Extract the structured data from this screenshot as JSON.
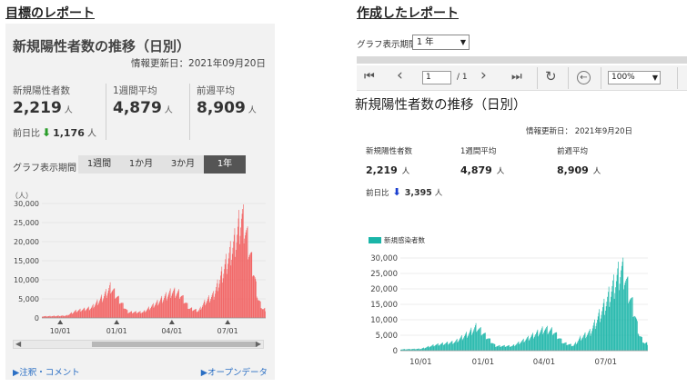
{
  "titles": {
    "left": "目標のレポート",
    "right": "作成したレポート"
  },
  "left": {
    "heading": "新規陽性者数の推移（日別）",
    "updated": "情報更新日：2021年09月20日",
    "stats": [
      {
        "label": "新規陽性者数",
        "value": "2,219",
        "unit": "人"
      },
      {
        "label": "1週間平均",
        "value": "4,879",
        "unit": "人"
      },
      {
        "label": "前週平均",
        "value": "8,909",
        "unit": "人"
      }
    ],
    "diff": {
      "label": "前日比",
      "arrow": "⬇",
      "value": "1,176",
      "unit": "人"
    },
    "period_label": "グラフ表示期間",
    "period_options": [
      "1週間",
      "1か月",
      "3か月",
      "1年"
    ],
    "period_active": "1年",
    "links": {
      "notes": "▶注釈・コメント",
      "opendata": "▶オープンデータ"
    }
  },
  "right": {
    "period_label": "グラフ表示期間",
    "period_selected": "1 年",
    "toolbar": {
      "first_icon": "⏮",
      "prev_icon": "‹",
      "page_value": "1",
      "page_total": "/ 1",
      "next_icon": "›",
      "last_icon": "⏭",
      "refresh_icon": "↻",
      "back_icon": "←",
      "zoom": "100%"
    },
    "heading": "新規陽性者数の推移（日別）",
    "updated": "情報更新日： 2021年9月20日",
    "stats": [
      {
        "label": "新規陽性者数",
        "value": "2,219",
        "unit": "人"
      },
      {
        "label": "1週間平均",
        "value": "4,879",
        "unit": "人"
      },
      {
        "label": "前週平均",
        "value": "8,909",
        "unit": "人"
      }
    ],
    "diff": {
      "label": "前日比",
      "arrow": "⬇",
      "value": "3,395",
      "unit": "人"
    },
    "legend": "新規感染者数"
  },
  "colors": {
    "left_bar": "#f25c5c",
    "right_bar": "#1ab5a8",
    "down_green": "#2a9d2a",
    "down_blue": "#1b3fcf"
  },
  "chart_data": [
    {
      "type": "bar",
      "ylabel": "（人）",
      "ylim": [
        0,
        30000
      ],
      "yticks": [
        "0",
        "5,000",
        "10,000",
        "15,000",
        "20,000",
        "25,000",
        "30,000"
      ],
      "xticks": [
        "10/01",
        "01/01",
        "04/01",
        "07/01"
      ],
      "grid": true,
      "series": [
        {
          "color": "#f25c5c",
          "keypoints": [
            [
              0,
              400
            ],
            [
              40,
              600
            ],
            [
              55,
              1800
            ],
            [
              80,
              2600
            ],
            [
              100,
              5500
            ],
            [
              112,
              8000
            ],
            [
              122,
              5500
            ],
            [
              140,
              1500
            ],
            [
              165,
              1500
            ],
            [
              190,
              4200
            ],
            [
              212,
              6800
            ],
            [
              225,
              6200
            ],
            [
              240,
              2500
            ],
            [
              255,
              1800
            ],
            [
              265,
              4000
            ],
            [
              280,
              6000
            ],
            [
              300,
              14000
            ],
            [
              315,
              20000
            ],
            [
              325,
              26000
            ],
            [
              330,
              24000
            ],
            [
              335,
              20000
            ],
            [
              345,
              12000
            ],
            [
              352,
              5000
            ],
            [
              360,
              2200
            ]
          ]
        }
      ]
    },
    {
      "type": "bar",
      "ylim": [
        0,
        30000
      ],
      "yticks": [
        "0",
        "5,000",
        "10,000",
        "15,000",
        "20,000",
        "25,000",
        "30,000"
      ],
      "xticks": [
        "10/01",
        "01/01",
        "04/01",
        "07/01"
      ],
      "legend": "top-left",
      "grid": true,
      "series": [
        {
          "name": "新規感染者数",
          "color": "#1ab5a8",
          "keypoints": [
            [
              0,
              400
            ],
            [
              30,
              600
            ],
            [
              50,
              1800
            ],
            [
              80,
              2800
            ],
            [
              100,
              5500
            ],
            [
              112,
              7600
            ],
            [
              122,
              5500
            ],
            [
              140,
              1500
            ],
            [
              165,
              1500
            ],
            [
              190,
              4200
            ],
            [
              212,
              6900
            ],
            [
              225,
              6200
            ],
            [
              240,
              2500
            ],
            [
              255,
              1600
            ],
            [
              265,
              4000
            ],
            [
              280,
              6000
            ],
            [
              300,
              14000
            ],
            [
              315,
              21000
            ],
            [
              325,
              26000
            ],
            [
              330,
              24500
            ],
            [
              335,
              20000
            ],
            [
              345,
              12000
            ],
            [
              352,
              5000
            ],
            [
              360,
              2300
            ]
          ]
        }
      ]
    }
  ]
}
